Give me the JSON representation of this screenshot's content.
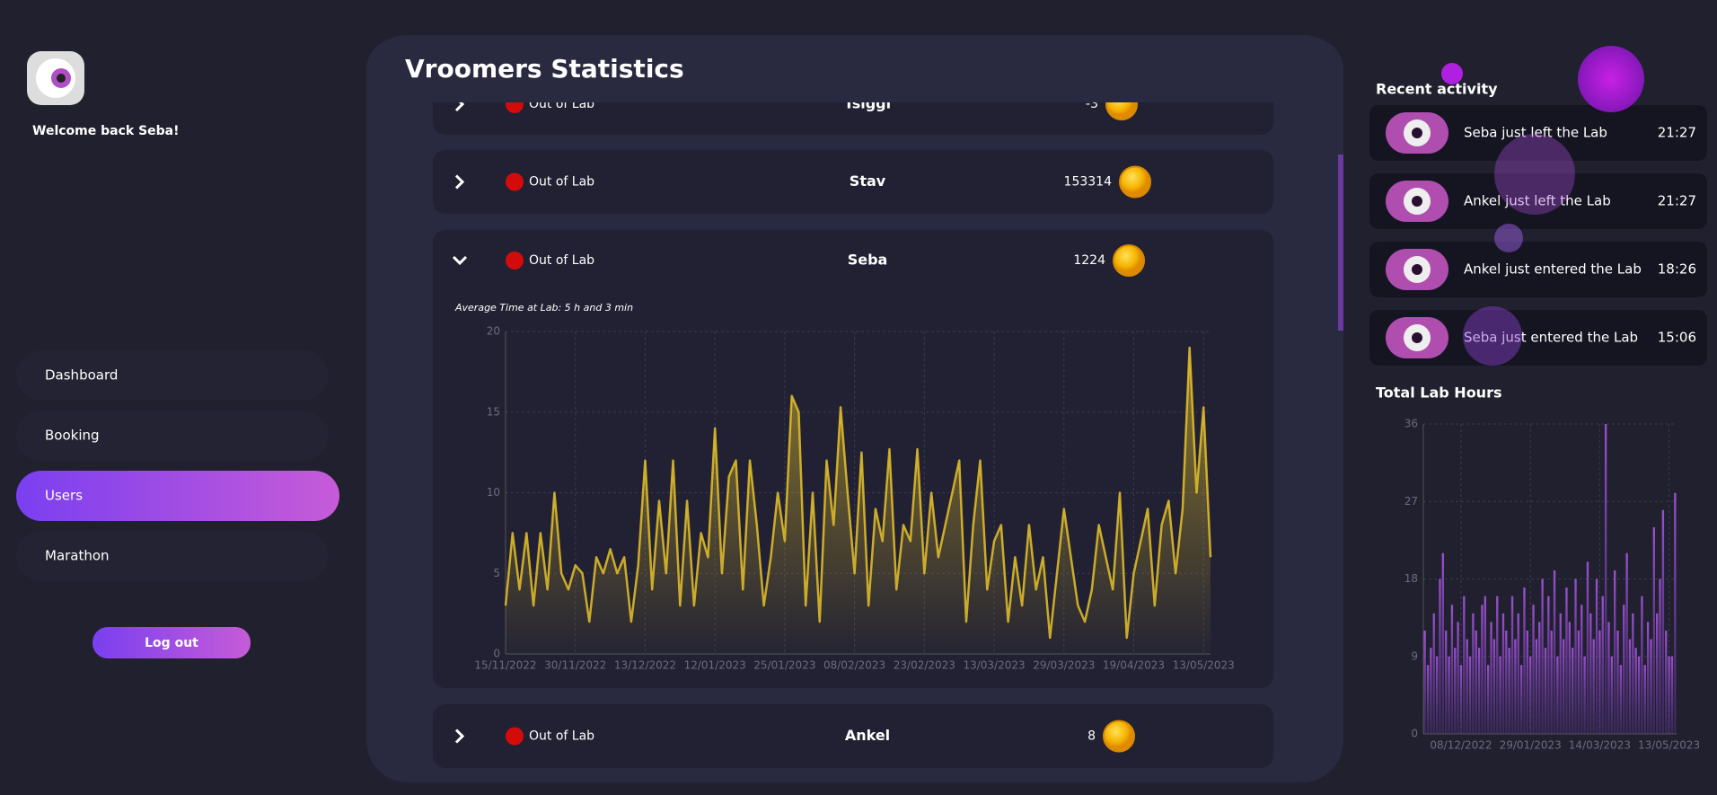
{
  "sidebar": {
    "welcome": "Welcome back Seba!",
    "nav": [
      "Dashboard",
      "Booking",
      "Users",
      "Marathon"
    ],
    "active": 2,
    "logout": "Log out"
  },
  "main": {
    "title": "Vroomers Statistics",
    "users": [
      {
        "status": "Out of Lab",
        "name": "Tsiggi",
        "coins": -3
      },
      {
        "status": "Out of Lab",
        "name": "Stav",
        "coins": 153314
      },
      {
        "status": "Out of Lab",
        "name": "Seba",
        "coins": 1224
      },
      {
        "status": "Out of Lab",
        "name": "Ankel",
        "coins": 8
      }
    ]
  },
  "activity": {
    "title": "Recent activity",
    "items": [
      {
        "text": "Seba just left the Lab",
        "time": "21:27"
      },
      {
        "text": "Ankel just left the Lab",
        "time": "21:27"
      },
      {
        "text": "Ankel just entered the Lab",
        "time": "18:26"
      },
      {
        "text": "Seba just entered the Lab",
        "time": "15:06"
      }
    ]
  },
  "chart_data": [
    {
      "type": "line",
      "subtitle": "Average Time at Lab: 5 h and 3 min",
      "color": "#e6c229",
      "grid": true,
      "ylim": [
        0,
        20
      ],
      "yticks": [
        0,
        5,
        10,
        15,
        20
      ],
      "categories": [
        "15/11/2022",
        null,
        null,
        null,
        null,
        null,
        null,
        null,
        null,
        null,
        "30/11/2022",
        null,
        null,
        null,
        null,
        null,
        null,
        null,
        null,
        null,
        "13/12/2022",
        null,
        null,
        null,
        null,
        null,
        null,
        null,
        null,
        null,
        "12/01/2023",
        null,
        null,
        null,
        null,
        null,
        null,
        null,
        null,
        null,
        "25/01/2023",
        null,
        null,
        null,
        null,
        null,
        null,
        null,
        null,
        null,
        "08/02/2023",
        null,
        null,
        null,
        null,
        null,
        null,
        null,
        null,
        null,
        "23/02/2023",
        null,
        null,
        null,
        null,
        null,
        null,
        null,
        null,
        null,
        "13/03/2023",
        null,
        null,
        null,
        null,
        null,
        null,
        null,
        null,
        null,
        "29/03/2023",
        null,
        null,
        null,
        null,
        null,
        null,
        null,
        null,
        null,
        "19/04/2023",
        null,
        null,
        null,
        null,
        null,
        null,
        null,
        null,
        null,
        "13/05/2023",
        null
      ],
      "values": [
        3,
        7.5,
        4,
        7.5,
        3,
        7.5,
        4,
        10,
        5,
        4,
        5.5,
        5,
        2,
        6,
        5,
        6.5,
        5,
        6,
        2,
        5.5,
        12,
        4,
        9.5,
        5,
        12,
        3,
        9.5,
        3,
        7.5,
        6,
        14,
        5,
        11,
        12,
        4,
        12,
        8,
        3,
        6,
        10,
        7,
        16,
        15,
        3,
        10,
        2,
        12,
        8,
        15.3,
        10,
        5,
        12.5,
        3,
        9,
        7,
        12.7,
        4,
        8,
        7,
        12.7,
        5,
        10,
        6,
        8,
        10,
        12,
        2,
        8,
        12,
        4,
        7,
        8,
        2,
        6,
        3,
        8,
        4,
        6,
        1,
        5,
        9,
        6,
        3,
        2,
        4,
        8,
        6,
        4,
        10,
        1,
        5,
        7,
        9,
        3,
        8,
        9.5,
        5,
        9,
        19,
        10,
        15.3,
        6
      ]
    },
    {
      "type": "bar",
      "title": "Total Lab Hours",
      "color": "#9b4fd0",
      "grid": true,
      "ylim": [
        0,
        36
      ],
      "yticks": [
        0,
        9,
        18,
        27,
        36
      ],
      "categories": [
        null,
        null,
        null,
        null,
        null,
        null,
        null,
        null,
        null,
        null,
        null,
        null,
        "08/12/2022",
        null,
        null,
        null,
        null,
        null,
        null,
        null,
        null,
        null,
        null,
        null,
        null,
        null,
        null,
        null,
        null,
        null,
        null,
        null,
        null,
        null,
        null,
        "29/01/2023",
        null,
        null,
        null,
        null,
        null,
        null,
        null,
        null,
        null,
        null,
        null,
        null,
        null,
        null,
        null,
        null,
        null,
        null,
        null,
        null,
        null,
        null,
        "14/03/2023",
        null,
        null,
        null,
        null,
        null,
        null,
        null,
        null,
        null,
        null,
        null,
        null,
        null,
        null,
        null,
        null,
        null,
        null,
        null,
        null,
        null,
        null,
        "13/05/2023",
        null,
        null
      ],
      "values": [
        12,
        8,
        10,
        14,
        9,
        18,
        21,
        12,
        9,
        15,
        10,
        13,
        8,
        16,
        11,
        9,
        14,
        12,
        10,
        15,
        16,
        8,
        13,
        11,
        16,
        9,
        14,
        12,
        10,
        16,
        11,
        14,
        8,
        17,
        12,
        9,
        15,
        11,
        13,
        18,
        10,
        16,
        12,
        19,
        9,
        14,
        11,
        17,
        13,
        10,
        18,
        12,
        15,
        9,
        20,
        14,
        11,
        18,
        12,
        16,
        36,
        13,
        9,
        19,
        12,
        8,
        15,
        21,
        11,
        14,
        10,
        9,
        16,
        8,
        13,
        11,
        24,
        14,
        18,
        26,
        12,
        9,
        9,
        28
      ]
    }
  ]
}
